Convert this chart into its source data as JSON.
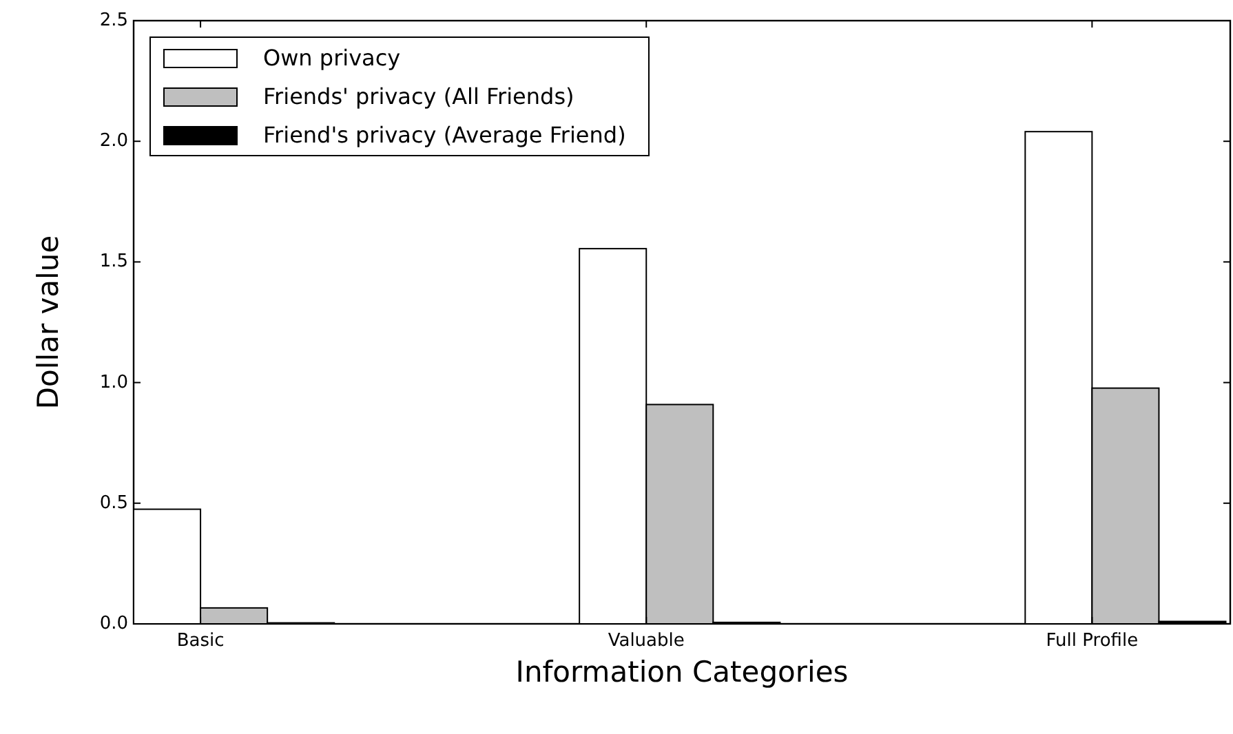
{
  "chart_data": {
    "type": "bar",
    "xlabel": "Information Categories",
    "ylabel": "Dollar value",
    "categories": [
      "Basic",
      "Valuable",
      "Full Profile"
    ],
    "series": [
      {
        "name": "Own privacy",
        "color": "#ffffff",
        "values": [
          0.475,
          1.555,
          2.04
        ]
      },
      {
        "name": "Friends' privacy (All Friends)",
        "color": "#bfbfbf",
        "values": [
          0.066,
          0.909,
          0.977
        ]
      },
      {
        "name": "Friend's privacy (Average Friend)",
        "color": "#000000",
        "values": [
          0.004,
          0.006,
          0.01
        ]
      }
    ],
    "ylim": [
      0,
      2.5
    ],
    "yticks": [
      {
        "value": 0,
        "label": "0.0"
      },
      {
        "value": 0.5,
        "label": "0.5"
      },
      {
        "value": 1,
        "label": "1.0"
      },
      {
        "value": 1.5,
        "label": "1.5"
      },
      {
        "value": 2,
        "label": "2.0"
      },
      {
        "value": 2.5,
        "label": "2.5"
      }
    ],
    "grid": false,
    "legend": "top left"
  }
}
